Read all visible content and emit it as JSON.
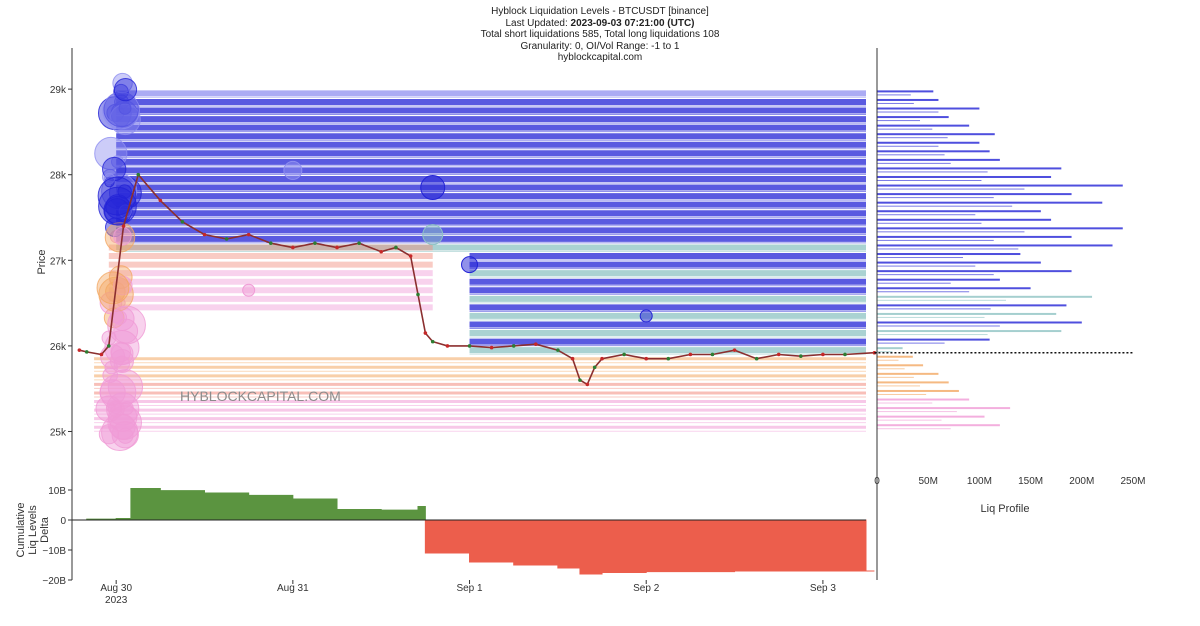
{
  "header": {
    "title": "Hyblock Liquidation Levels - BTCUSDT [binance]",
    "updated_label": "Last Updated:",
    "updated_value": "2023-09-03 07:21:00 (UTC)",
    "totals": "Total short liquidations 585, Total long liquidations 108",
    "granularity": "Granularity: 0, OI/Vol Range: -1 to 1",
    "site": "hyblockcapital.com"
  },
  "watermark": "HYBLOCKCAPITAL.COM",
  "colors": {
    "short_levels": "#2323d6",
    "short_levels_light": "#8f8ff0",
    "teal_levels": "#8ec3c3",
    "long_levels_orange": "#f3a863",
    "long_levels_salmon": "#f28b7d",
    "long_levels_pink": "#f09bd6",
    "price_line": "#8b2f2f",
    "delta_positive": "#5b9440",
    "delta_negative": "#ec5e4c"
  },
  "chart_data": [
    {
      "type": "line",
      "name": "main-price-chart",
      "ylabel": "Price",
      "ylim": [
        24550,
        29200
      ],
      "y_ticks": [
        25000,
        26000,
        27000,
        28000,
        29000
      ],
      "y_tick_labels": [
        "25k",
        "26k",
        "27k",
        "28k",
        "29k"
      ],
      "x_range": [
        "2023-08-29 18:00",
        "2023-09-03 07:21"
      ],
      "x_ticks": [
        "2023-08-30",
        "2023-08-31",
        "2023-09-01",
        "2023-09-02",
        "2023-09-03"
      ],
      "x_tick_labels": [
        "Aug 30",
        "Aug 31",
        "Sep 1",
        "Sep 2",
        "Sep 3"
      ],
      "x_tick_sublabel": "2023",
      "price_series": {
        "x": [
          "2023-08-29 19:00",
          "2023-08-29 20:00",
          "2023-08-29 22:00",
          "2023-08-29 23:00",
          "2023-08-30 01:00",
          "2023-08-30 03:00",
          "2023-08-30 06:00",
          "2023-08-30 09:00",
          "2023-08-30 12:00",
          "2023-08-30 15:00",
          "2023-08-30 18:00",
          "2023-08-30 21:00",
          "2023-08-31 00:00",
          "2023-08-31 03:00",
          "2023-08-31 06:00",
          "2023-08-31 09:00",
          "2023-08-31 12:00",
          "2023-08-31 14:00",
          "2023-08-31 16:00",
          "2023-08-31 17:00",
          "2023-08-31 18:00",
          "2023-08-31 19:00",
          "2023-08-31 21:00",
          "2023-09-01 00:00",
          "2023-09-01 03:00",
          "2023-09-01 06:00",
          "2023-09-01 09:00",
          "2023-09-01 12:00",
          "2023-09-01 14:00",
          "2023-09-01 15:00",
          "2023-09-01 16:00",
          "2023-09-01 17:00",
          "2023-09-01 18:00",
          "2023-09-01 21:00",
          "2023-09-02 00:00",
          "2023-09-02 03:00",
          "2023-09-02 06:00",
          "2023-09-02 09:00",
          "2023-09-02 12:00",
          "2023-09-02 15:00",
          "2023-09-02 18:00",
          "2023-09-02 21:00",
          "2023-09-03 00:00",
          "2023-09-03 03:00",
          "2023-09-03 07:00"
        ],
        "y": [
          25950,
          25930,
          25900,
          26000,
          27400,
          28000,
          27700,
          27450,
          27300,
          27250,
          27300,
          27200,
          27150,
          27200,
          27150,
          27200,
          27100,
          27150,
          27050,
          26600,
          26150,
          26050,
          26000,
          26000,
          25980,
          26000,
          26020,
          25950,
          25850,
          25600,
          25550,
          25750,
          25850,
          25900,
          25850,
          25850,
          25900,
          25900,
          25950,
          25850,
          25900,
          25880,
          25900,
          25900,
          25920
        ]
      },
      "current_price": 25920,
      "short_levels": [
        25950,
        26050,
        26150,
        26250,
        26350,
        26450,
        26550,
        26650,
        26750,
        26850,
        26950,
        27050,
        27150,
        27250,
        27350,
        27450,
        27550,
        27650,
        27750,
        27850,
        27950,
        28050,
        28150,
        28250,
        28350,
        28450,
        28550,
        28650,
        28750,
        28850,
        28950
      ],
      "long_levels": [
        25050,
        25150,
        25250,
        25350,
        25450,
        25550,
        25650,
        25750,
        25850
      ]
    },
    {
      "type": "area",
      "name": "cumulative-liq-levels-delta",
      "ylabel": "Cumulative Liq Levels Delta",
      "ylim": [
        -20000000000,
        14000000000
      ],
      "y_ticks": [
        10000000000,
        0,
        -10000000000,
        -20000000000
      ],
      "y_tick_labels": [
        "10B",
        "0",
        "−10B",
        "−20B"
      ],
      "x": [
        "2023-08-29 20:00",
        "2023-08-30 00:00",
        "2023-08-30 02:00",
        "2023-08-30 06:00",
        "2023-08-30 12:00",
        "2023-08-30 18:00",
        "2023-08-31 00:00",
        "2023-08-31 06:00",
        "2023-08-31 12:00",
        "2023-08-31 17:00",
        "2023-08-31 18:00",
        "2023-09-01 00:00",
        "2023-09-01 06:00",
        "2023-09-01 12:00",
        "2023-09-01 15:00",
        "2023-09-01 18:00",
        "2023-09-02 00:00",
        "2023-09-02 12:00",
        "2023-09-03 00:00",
        "2023-09-03 07:00"
      ],
      "values": [
        300000000.0,
        500000000.0,
        10500000000.0,
        9800000000.0,
        9000000000.0,
        8200000000.0,
        7000000000.0,
        3500000000.0,
        3300000000.0,
        4500000000.0,
        -11000000000.0,
        -14000000000.0,
        -15000000000.0,
        -16000000000.0,
        -18000000000.0,
        -17500000000.0,
        -17200000000.0,
        -17000000000.0,
        -17000000000.0,
        -17000000000.0
      ]
    },
    {
      "type": "bar",
      "name": "liq-profile",
      "orientation": "horizontal",
      "xlabel": "Liq Profile",
      "xlim": [
        0,
        250000000
      ],
      "x_ticks": [
        0,
        50000000,
        100000000,
        150000000,
        200000000,
        250000000
      ],
      "x_tick_labels": [
        "0",
        "50M",
        "100M",
        "150M",
        "200M",
        "250M"
      ],
      "categories": [
        25050,
        25150,
        25250,
        25350,
        25450,
        25550,
        25650,
        25750,
        25850,
        25950,
        26050,
        26150,
        26250,
        26350,
        26450,
        26550,
        26650,
        26750,
        26850,
        26950,
        27050,
        27150,
        27250,
        27350,
        27450,
        27550,
        27650,
        27750,
        27850,
        27950,
        28050,
        28150,
        28250,
        28350,
        28450,
        28550,
        28650,
        28750,
        28850,
        28950
      ],
      "values": [
        120000000,
        105000000,
        130000000,
        90000000,
        80000000,
        70000000,
        60000000,
        45000000,
        35000000,
        25000000,
        110000000,
        180000000,
        200000000,
        175000000,
        185000000,
        210000000,
        150000000,
        120000000,
        190000000,
        160000000,
        140000000,
        230000000,
        190000000,
        240000000,
        170000000,
        160000000,
        220000000,
        190000000,
        240000000,
        170000000,
        180000000,
        120000000,
        110000000,
        100000000,
        115000000,
        90000000,
        70000000,
        100000000,
        60000000,
        55000000
      ]
    }
  ]
}
